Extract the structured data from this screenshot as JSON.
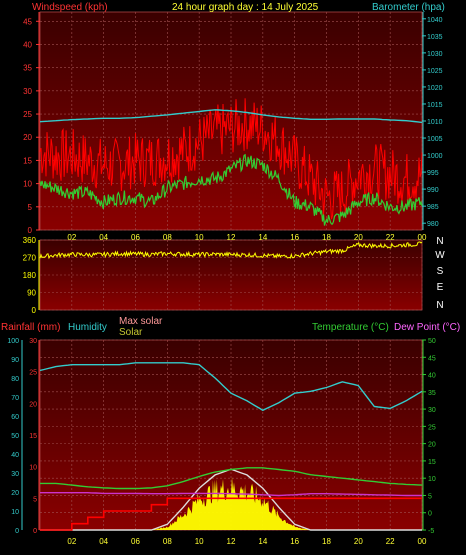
{
  "header": {
    "left_title": "Windspeed (kph)",
    "center_title": "24 hour graph day : 14 July 2025",
    "right_title": "Barometer (hpa)"
  },
  "direction_panel": {
    "ticks": [
      "360",
      "270",
      "180",
      "90",
      "0"
    ],
    "compass": [
      "N",
      "W",
      "S",
      "E",
      "N"
    ]
  },
  "lower_header": {
    "rainfall": "Rainfall (mm)",
    "humidity": "Humidity",
    "max_solar": "Max solar",
    "solar": "Solar",
    "temperature": "Temperature (°C)",
    "dew_point": "Dew Point (°C)"
  },
  "colors": {
    "panel_bg": "#6b0000",
    "wind_avg": "#ff0000",
    "wind_gust": "#ff0000",
    "barometer": "#33cccc",
    "wind_dir": "#ffff00",
    "humidity": "#33cccc",
    "temperature": "#33cc33",
    "dew_point": "#cc33cc",
    "rainfall": "#ff0000",
    "solar": "#ffff00",
    "max_solar": "#dddddd",
    "axis_left": "#ff3333",
    "axis_right": "#33cccc",
    "axis_yellow": "#ffff00",
    "temp_axis": "#33cc33",
    "hours": "#ffff33"
  },
  "chart_data": [
    {
      "type": "line",
      "name_panel": "wind_and_pressure",
      "x_ticks": [
        "02",
        "04",
        "06",
        "08",
        "10",
        "12",
        "14",
        "16",
        "18",
        "20",
        "22",
        "00"
      ],
      "y_left_label": "Windspeed (kph)",
      "y_left_ticks": [
        "0",
        "5",
        "10",
        "15",
        "20",
        "25",
        "30",
        "35",
        "40",
        "45"
      ],
      "y_left_range": [
        0,
        47
      ],
      "y_right_label": "Barometer (hpa)",
      "y_right_ticks": [
        "980",
        "985",
        "990",
        "995",
        "1000",
        "1005",
        "1010",
        "1015",
        "1020",
        "1025",
        "1030",
        "1035",
        "1040"
      ],
      "y_right_range": [
        978,
        1042
      ],
      "hours": [
        0,
        1,
        2,
        3,
        4,
        5,
        6,
        7,
        8,
        9,
        10,
        11,
        12,
        13,
        14,
        15,
        16,
        17,
        18,
        19,
        20,
        21,
        22,
        23,
        24
      ],
      "wind_average": [
        10,
        9,
        8,
        8,
        6,
        7,
        7,
        6,
        9,
        10,
        11,
        11,
        13,
        15,
        14,
        11,
        6,
        5,
        2,
        3,
        6,
        7,
        5,
        5,
        6
      ],
      "wind_gust": [
        17,
        16,
        16,
        15,
        14,
        14,
        15,
        15,
        16,
        17,
        19,
        21,
        22,
        23,
        22,
        19,
        15,
        11,
        7,
        8,
        12,
        13,
        12,
        11,
        12
      ],
      "barometer": [
        1009.8,
        1010.1,
        1010.4,
        1010.6,
        1010.8,
        1010.8,
        1011.0,
        1011.4,
        1011.8,
        1012.3,
        1012.8,
        1013.3,
        1013.0,
        1012.5,
        1011.8,
        1011.2,
        1010.8,
        1010.5,
        1010.5,
        1010.6,
        1010.6,
        1010.6,
        1010.3,
        1010.1,
        1009.6
      ]
    },
    {
      "type": "line",
      "name_panel": "wind_direction",
      "y_ticks": [
        "0",
        "90",
        "180",
        "270",
        "360"
      ],
      "y_range": [
        0,
        360
      ],
      "compass_labels": [
        "N",
        "W",
        "S",
        "E",
        "N"
      ],
      "hours": [
        0,
        1,
        2,
        3,
        4,
        5,
        6,
        7,
        8,
        9,
        10,
        11,
        12,
        13,
        14,
        15,
        16,
        17,
        18,
        19,
        20,
        21,
        22,
        23,
        24
      ],
      "wind_direction_deg": [
        275,
        282,
        286,
        284,
        285,
        290,
        288,
        286,
        290,
        287,
        285,
        287,
        285,
        284,
        280,
        276,
        278,
        290,
        300,
        305,
        335,
        330,
        330,
        335,
        340
      ]
    },
    {
      "type": "line",
      "name_panel": "rain_humidity_solar_temperature",
      "x_ticks": [
        "02",
        "04",
        "06",
        "08",
        "10",
        "12",
        "14",
        "16",
        "18",
        "20",
        "22",
        "00"
      ],
      "y_humidity_ticks": [
        "0",
        "10",
        "20",
        "30",
        "40",
        "50",
        "60",
        "70",
        "80",
        "90",
        "100"
      ],
      "y_humidity_range": [
        0,
        100
      ],
      "y_rain_ticks": [
        "0",
        "5",
        "10",
        "15",
        "20",
        "25",
        "30"
      ],
      "y_rain_range": [
        0,
        30
      ],
      "y_temp_ticks": [
        "-5",
        "0",
        "5",
        "10",
        "15",
        "20",
        "25",
        "30",
        "35",
        "40",
        "45",
        "50"
      ],
      "y_temp_range": [
        -5,
        50
      ],
      "hours": [
        0,
        1,
        2,
        3,
        4,
        5,
        6,
        7,
        8,
        9,
        10,
        11,
        12,
        13,
        14,
        15,
        16,
        17,
        18,
        19,
        20,
        21,
        22,
        23,
        24
      ],
      "humidity": [
        84,
        86,
        87,
        87,
        87,
        87,
        88,
        88,
        88,
        88,
        87,
        80,
        72,
        68,
        63,
        67,
        72,
        73,
        75,
        78,
        76,
        65,
        64,
        68,
        73
      ],
      "temperature": [
        8.5,
        8.5,
        8.0,
        7.5,
        7.2,
        7.0,
        7.0,
        7.2,
        7.8,
        9.0,
        10.5,
        11.8,
        12.5,
        13.0,
        13.0,
        12.5,
        12.0,
        11.0,
        10.5,
        10.0,
        9.5,
        9.0,
        8.5,
        8.2,
        8.0
      ],
      "dew_point": [
        5.8,
        5.8,
        5.8,
        5.8,
        5.6,
        5.6,
        5.6,
        5.5,
        5.5,
        5.6,
        5.6,
        5.6,
        5.5,
        5.4,
        5.2,
        5.0,
        5.2,
        5.5,
        5.5,
        5.4,
        5.3,
        5.2,
        5.1,
        5.0,
        5.0
      ],
      "rainfall_cumulative": [
        0,
        0,
        1,
        2,
        3,
        3,
        3,
        4,
        5,
        5,
        5,
        5,
        5,
        5,
        5,
        5,
        5,
        5,
        5,
        5,
        5,
        5,
        5,
        5,
        5
      ],
      "max_solar_percent": [
        0,
        0,
        0,
        0,
        0,
        0,
        0,
        0,
        3,
        12,
        22,
        29,
        32,
        29,
        22,
        12,
        3,
        0,
        0,
        0,
        0,
        0,
        0,
        0,
        0
      ],
      "solar_percent": [
        0,
        0,
        0,
        0,
        0,
        0,
        0,
        0,
        2,
        10,
        20,
        26,
        28,
        25,
        20,
        9,
        2,
        0,
        0,
        0,
        0,
        0,
        0,
        0,
        0
      ]
    }
  ]
}
